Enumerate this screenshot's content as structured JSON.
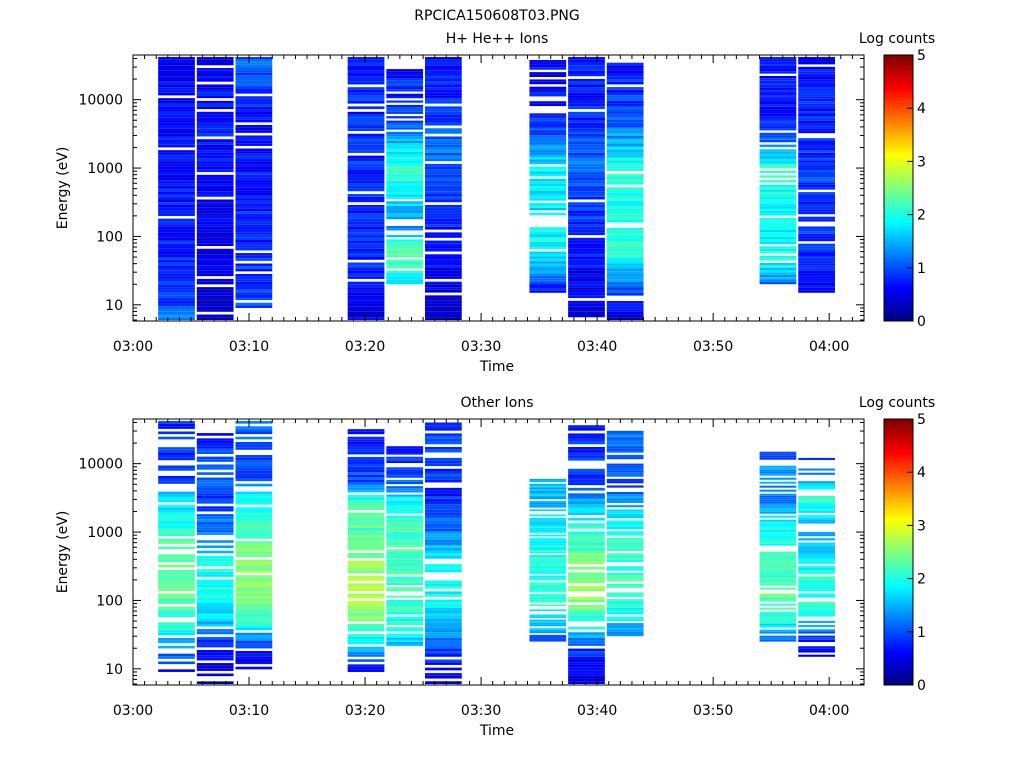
{
  "figure_title": "RPCICA150608T03.PNG",
  "colorscale": [
    "#00007f",
    "#0000ff",
    "#007fff",
    "#00ffff",
    "#7fff7f",
    "#ffff00",
    "#ff7f00",
    "#ff0000",
    "#7f0000"
  ],
  "chart_data": [
    {
      "type": "heatmap",
      "title": "H+ He++ Ions",
      "xlabel": "Time",
      "ylabel": "Energy (eV)",
      "colorbar_label": "Log counts",
      "x_range": [
        "03:00",
        "04:03"
      ],
      "x_ticks": [
        "03:00",
        "03:10",
        "03:20",
        "03:30",
        "03:40",
        "03:50",
        "04:00"
      ],
      "y_scale": "log",
      "y_range": [
        5.8,
        45000
      ],
      "y_ticks": [
        "10",
        "100",
        "1000",
        "10000"
      ],
      "colorbar_range": [
        0,
        5
      ],
      "colorbar_ticks": [
        "0",
        "1",
        "2",
        "3",
        "4",
        "5"
      ],
      "columns": [
        {
          "start": "03:02:10",
          "end": "03:05:20",
          "emin": 6,
          "emax": 42000,
          "profile": [
            [
              6,
              1.3
            ],
            [
              10,
              0.9
            ],
            [
              100,
              0.75
            ],
            [
              1000,
              0.7
            ],
            [
              10000,
              0.65
            ],
            [
              42000,
              0.55
            ]
          ],
          "gaps": 0.1
        },
        {
          "start": "03:05:30",
          "end": "03:08:40",
          "emin": 6,
          "emax": 42000,
          "profile": [
            [
              6,
              0.35
            ],
            [
              30,
              0.4
            ],
            [
              300,
              0.6
            ],
            [
              3000,
              0.7
            ],
            [
              42000,
              0.6
            ]
          ],
          "gaps": 0.08
        },
        {
          "start": "03:08:50",
          "end": "03:12:00",
          "emin": 9,
          "emax": 42000,
          "profile": [
            [
              9,
              1.0
            ],
            [
              100,
              0.75
            ],
            [
              1000,
              0.7
            ],
            [
              10000,
              0.75
            ],
            [
              20000,
              1.0
            ],
            [
              42000,
              1.1
            ]
          ],
          "gaps": 0.1
        },
        {
          "start": "03:18:30",
          "end": "03:21:40",
          "emin": 6,
          "emax": 42000,
          "profile": [
            [
              6,
              0.45
            ],
            [
              30,
              0.75
            ],
            [
              100,
              0.8
            ],
            [
              1000,
              0.8
            ],
            [
              10000,
              0.85
            ],
            [
              42000,
              0.7
            ]
          ],
          "gaps": 0.1
        },
        {
          "start": "03:21:50",
          "end": "03:25:00",
          "emin": 20,
          "emax": 28000,
          "profile": [
            [
              20,
              1.9
            ],
            [
              60,
              2.35
            ],
            [
              150,
              1.3
            ],
            [
              400,
              1.8
            ],
            [
              1000,
              2.15
            ],
            [
              2000,
              1.7
            ],
            [
              5000,
              1.0
            ],
            [
              28000,
              0.7
            ]
          ],
          "gaps": 0.12
        },
        {
          "start": "03:25:10",
          "end": "03:28:20",
          "emin": 6,
          "emax": 42000,
          "profile": [
            [
              6,
              0.3
            ],
            [
              20,
              0.5
            ],
            [
              100,
              0.7
            ],
            [
              500,
              0.9
            ],
            [
              2000,
              1.2
            ],
            [
              10000,
              0.8
            ],
            [
              42000,
              0.7
            ]
          ],
          "gaps": 0.1
        },
        {
          "start": "03:34:10",
          "end": "03:37:20",
          "emin": 15,
          "emax": 38000,
          "profile": [
            [
              15,
              0.6
            ],
            [
              30,
              1.4
            ],
            [
              80,
              1.9
            ],
            [
              300,
              1.75
            ],
            [
              1000,
              1.85
            ],
            [
              3000,
              1.0
            ],
            [
              10000,
              0.7
            ],
            [
              38000,
              0.6
            ]
          ],
          "gaps": 0.15
        },
        {
          "start": "03:37:30",
          "end": "03:40:40",
          "emin": 6,
          "emax": 42000,
          "profile": [
            [
              6,
              0.5
            ],
            [
              30,
              0.55
            ],
            [
              100,
              0.8
            ],
            [
              300,
              0.9
            ],
            [
              1000,
              1.2
            ],
            [
              3000,
              0.9
            ],
            [
              10000,
              0.75
            ],
            [
              42000,
              0.7
            ]
          ],
          "gaps": 0.1
        },
        {
          "start": "03:40:50",
          "end": "03:44:00",
          "emin": 6,
          "emax": 38000,
          "profile": [
            [
              6,
              0.3
            ],
            [
              20,
              1.2
            ],
            [
              60,
              2.15
            ],
            [
              200,
              1.95
            ],
            [
              1000,
              2.15
            ],
            [
              2000,
              1.6
            ],
            [
              5000,
              1.0
            ],
            [
              38000,
              0.7
            ]
          ],
          "gaps": 0.12
        },
        {
          "start": "03:54:00",
          "end": "03:57:10",
          "emin": 20,
          "emax": 42000,
          "profile": [
            [
              20,
              1.2
            ],
            [
              50,
              2.1
            ],
            [
              150,
              1.75
            ],
            [
              500,
              2.0
            ],
            [
              1000,
              2.1
            ],
            [
              2000,
              1.3
            ],
            [
              5000,
              0.8
            ],
            [
              42000,
              0.6
            ]
          ],
          "gaps": 0.15
        },
        {
          "start": "03:57:20",
          "end": "04:00:30",
          "emin": 15,
          "emax": 42000,
          "profile": [
            [
              15,
              0.6
            ],
            [
              50,
              0.8
            ],
            [
              200,
              0.85
            ],
            [
              1000,
              0.9
            ],
            [
              5000,
              0.8
            ],
            [
              42000,
              0.7
            ]
          ],
          "gaps": 0.1
        }
      ]
    },
    {
      "type": "heatmap",
      "title": "Other Ions",
      "xlabel": "Time",
      "ylabel": "Energy (eV)",
      "colorbar_label": "Log counts",
      "x_range": [
        "03:00",
        "04:03"
      ],
      "x_ticks": [
        "03:00",
        "03:10",
        "03:20",
        "03:30",
        "03:40",
        "03:50",
        "04:00"
      ],
      "y_scale": "log",
      "y_range": [
        5.8,
        45000
      ],
      "y_ticks": [
        "10",
        "100",
        "1000",
        "10000"
      ],
      "colorbar_range": [
        0,
        5
      ],
      "colorbar_ticks": [
        "0",
        "1",
        "2",
        "3",
        "4",
        "5"
      ],
      "columns": [
        {
          "start": "03:02:10",
          "end": "03:05:20",
          "emin": 9,
          "emax": 42000,
          "profile": [
            [
              9,
              0.75
            ],
            [
              20,
              1.3
            ],
            [
              40,
              2.0
            ],
            [
              100,
              2.3
            ],
            [
              300,
              2.4
            ],
            [
              1000,
              2.1
            ],
            [
              3000,
              1.7
            ],
            [
              5000,
              0.9
            ],
            [
              42000,
              0.8
            ]
          ],
          "gaps": 0.25
        },
        {
          "start": "03:05:30",
          "end": "03:08:40",
          "emin": 6,
          "emax": 28000,
          "profile": [
            [
              6,
              0.3
            ],
            [
              20,
              0.6
            ],
            [
              40,
              1.5
            ],
            [
              100,
              1.9
            ],
            [
              300,
              2.0
            ],
            [
              1000,
              1.3
            ],
            [
              3000,
              0.9
            ],
            [
              10000,
              1.1
            ],
            [
              28000,
              0.8
            ]
          ],
          "gaps": 0.25
        },
        {
          "start": "03:08:50",
          "end": "03:12:00",
          "emin": 9,
          "emax": 42000,
          "profile": [
            [
              9,
              0.35
            ],
            [
              20,
              0.8
            ],
            [
              50,
              2.1
            ],
            [
              100,
              2.6
            ],
            [
              300,
              2.5
            ],
            [
              1000,
              2.2
            ],
            [
              3000,
              1.8
            ],
            [
              6000,
              1.0
            ],
            [
              42000,
              1.1
            ]
          ],
          "gaps": 0.2
        },
        {
          "start": "03:18:30",
          "end": "03:21:40",
          "emin": 9,
          "emax": 32000,
          "profile": [
            [
              9,
              0.5
            ],
            [
              20,
              1.5
            ],
            [
              40,
              2.3
            ],
            [
              100,
              2.7
            ],
            [
              300,
              2.6
            ],
            [
              1000,
              2.3
            ],
            [
              3000,
              2.1
            ],
            [
              5500,
              1.0
            ],
            [
              32000,
              0.8
            ]
          ],
          "gaps": 0.2
        },
        {
          "start": "03:21:50",
          "end": "03:25:00",
          "emin": 20,
          "emax": 18000,
          "profile": [
            [
              20,
              1.5
            ],
            [
              50,
              2.0
            ],
            [
              200,
              2.2
            ],
            [
              1000,
              2.2
            ],
            [
              3000,
              1.9
            ],
            [
              5000,
              1.1
            ],
            [
              18000,
              0.8
            ]
          ],
          "gaps": 0.2
        },
        {
          "start": "03:25:10",
          "end": "03:28:20",
          "emin": 6,
          "emax": 40000,
          "profile": [
            [
              6,
              0.35
            ],
            [
              20,
              1.0
            ],
            [
              50,
              1.6
            ],
            [
              100,
              1.9
            ],
            [
              300,
              2.0
            ],
            [
              1000,
              1.2
            ],
            [
              3000,
              0.8
            ],
            [
              40000,
              1.0
            ]
          ],
          "gaps": 0.25
        },
        {
          "start": "03:34:10",
          "end": "03:37:20",
          "emin": 25,
          "emax": 6000,
          "profile": [
            [
              25,
              1.0
            ],
            [
              40,
              1.6
            ],
            [
              100,
              2.1
            ],
            [
              300,
              2.0
            ],
            [
              1000,
              1.9
            ],
            [
              3000,
              1.5
            ],
            [
              6000,
              1.6
            ]
          ],
          "gaps": 0.2
        },
        {
          "start": "03:37:30",
          "end": "03:40:40",
          "emin": 6,
          "emax": 40000,
          "profile": [
            [
              6,
              0.4
            ],
            [
              20,
              0.9
            ],
            [
              40,
              1.8
            ],
            [
              100,
              2.6
            ],
            [
              300,
              2.5
            ],
            [
              1000,
              2.1
            ],
            [
              3000,
              1.4
            ],
            [
              5000,
              0.9
            ],
            [
              40000,
              0.8
            ]
          ],
          "gaps": 0.25
        },
        {
          "start": "03:40:50",
          "end": "03:44:00",
          "emin": 30,
          "emax": 35000,
          "profile": [
            [
              30,
              1.1
            ],
            [
              60,
              1.9
            ],
            [
              200,
              2.2
            ],
            [
              1000,
              2.0
            ],
            [
              3000,
              1.4
            ],
            [
              5000,
              0.9
            ],
            [
              35000,
              1.3
            ]
          ],
          "gaps": 0.25
        },
        {
          "start": "03:54:00",
          "end": "03:57:10",
          "emin": 25,
          "emax": 16000,
          "profile": [
            [
              25,
              1.1
            ],
            [
              50,
              2.0
            ],
            [
              100,
              2.3
            ],
            [
              300,
              2.2
            ],
            [
              1000,
              2.0
            ],
            [
              3000,
              1.2
            ],
            [
              7000,
              1.5
            ],
            [
              16000,
              0.8
            ]
          ],
          "gaps": 0.25
        },
        {
          "start": "03:57:20",
          "end": "04:00:30",
          "emin": 15,
          "emax": 14000,
          "profile": [
            [
              15,
              0.3
            ],
            [
              30,
              0.9
            ],
            [
              60,
              2.0
            ],
            [
              200,
              2.1
            ],
            [
              1000,
              1.5
            ],
            [
              2800,
              2.1
            ],
            [
              14000,
              0.8
            ]
          ],
          "gaps": 0.3
        }
      ]
    }
  ]
}
